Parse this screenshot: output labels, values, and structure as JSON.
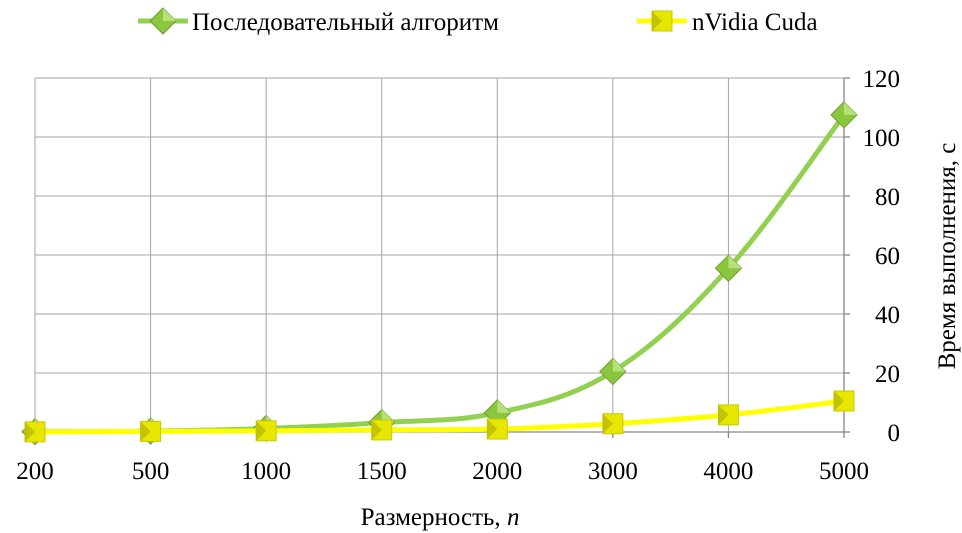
{
  "chart_data": {
    "type": "line",
    "categories": [
      "200",
      "500",
      "1000",
      "1500",
      "2000",
      "3000",
      "4000",
      "5000"
    ],
    "xlabel_text": "Размерность, ",
    "xlabel_italic": "n",
    "ylabel": "Время выполнения, с",
    "ylim": [
      0,
      120
    ],
    "yticks": [
      0,
      20,
      40,
      60,
      80,
      100,
      120
    ],
    "grid": true,
    "y_axis_side": "right",
    "legend_position": "top",
    "series": [
      {
        "name": "Последовательный алгоритм",
        "color": "#92d050",
        "marker_color": "#8cc63f",
        "marker": "diamond",
        "values": [
          0.1,
          0.3,
          1.2,
          3.2,
          6.5,
          20.5,
          55.5,
          107.5
        ]
      },
      {
        "name": "nVidia Cuda",
        "color": "#ffff00",
        "marker_color": "#e6e600",
        "marker": "square",
        "values": [
          0.05,
          0.2,
          0.4,
          0.7,
          1.0,
          2.8,
          5.8,
          10.5
        ]
      }
    ]
  }
}
